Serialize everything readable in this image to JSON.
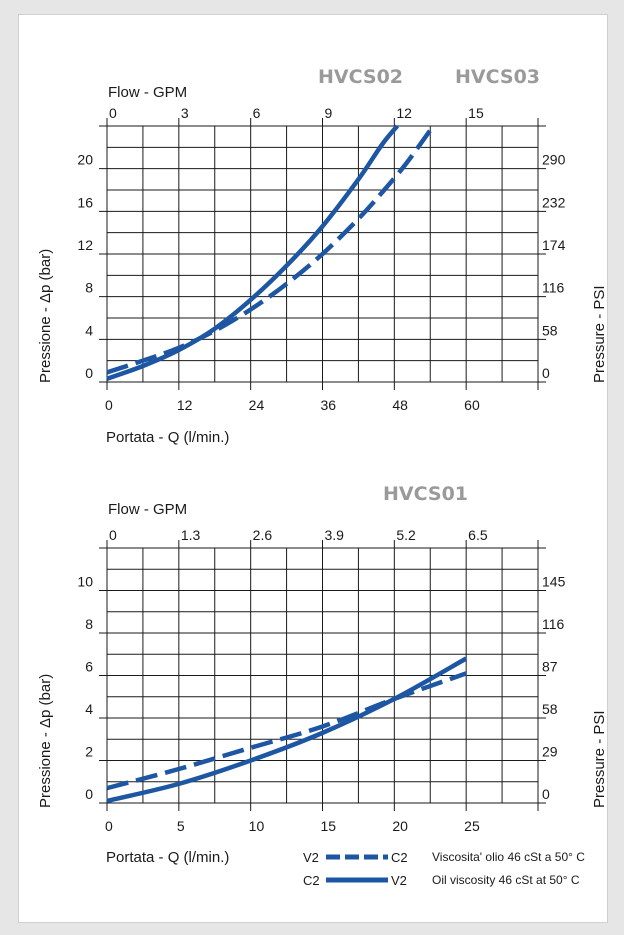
{
  "colors": {
    "curve": "#1d56a3",
    "grid": "#1a1a1a",
    "brand": "#9a9a9a"
  },
  "chart_data": [
    {
      "type": "line",
      "brands": [
        "HVCS02",
        "HVCS03"
      ],
      "top_axis_label": "Flow - GPM",
      "top_ticks": [
        "0",
        "3",
        "6",
        "9",
        "12",
        "15"
      ],
      "xlabel": "Portata - Q (l/min.)",
      "x_ticks": [
        "0",
        "12",
        "24",
        "36",
        "48",
        "60"
      ],
      "xlim": [
        0,
        72
      ],
      "ylabel": "Pressione -  Δp (bar)",
      "y_ticks": [
        "0",
        "4",
        "8",
        "12",
        "16",
        "20"
      ],
      "ylim": [
        0,
        24
      ],
      "right_axis_label": "Pressure - PSI",
      "right_ticks": [
        "0",
        "58",
        "116",
        "174",
        "232",
        "290"
      ],
      "grid": true,
      "series": [
        {
          "style": "solid",
          "x": [
            0,
            6,
            12,
            18,
            24,
            30,
            36,
            42,
            46,
            48.5
          ],
          "y": [
            0.3,
            1.5,
            3.0,
            5.0,
            7.7,
            10.9,
            14.6,
            19.0,
            22.3,
            24.0
          ]
        },
        {
          "style": "dashed",
          "x": [
            0,
            6,
            12,
            18,
            24,
            30,
            36,
            42,
            46,
            50,
            54.5
          ],
          "y": [
            0.9,
            2.0,
            3.2,
            4.8,
            6.8,
            9.2,
            12.0,
            15.3,
            17.8,
            20.5,
            24.0
          ]
        }
      ]
    },
    {
      "type": "line",
      "brands": [
        "HVCS01"
      ],
      "top_axis_label": "Flow - GPM",
      "top_ticks": [
        "0",
        "1.3",
        "2.6",
        "3.9",
        "5.2",
        "6.5"
      ],
      "xlabel": "Portata - Q (l/min.)",
      "x_ticks": [
        "0",
        "5",
        "10",
        "15",
        "20",
        "25"
      ],
      "xlim": [
        0,
        30
      ],
      "ylabel": "Pressione -  Δp (bar)",
      "y_ticks": [
        "0",
        "2",
        "4",
        "6",
        "8",
        "10"
      ],
      "ylim": [
        0,
        12
      ],
      "right_axis_label": "Pressure - PSI",
      "right_ticks": [
        "0",
        "29",
        "58",
        "87",
        "116",
        "145"
      ],
      "grid": true,
      "series": [
        {
          "style": "solid",
          "x": [
            0,
            5,
            10,
            15,
            20,
            25
          ],
          "y": [
            0.1,
            0.9,
            2.0,
            3.3,
            4.9,
            6.8
          ]
        },
        {
          "style": "dashed",
          "x": [
            0,
            5,
            10,
            15,
            20,
            25
          ],
          "y": [
            0.7,
            1.6,
            2.6,
            3.6,
            4.9,
            6.1
          ]
        }
      ],
      "legend": {
        "row1": {
          "left": "V2",
          "right": "C2",
          "style": "dashed"
        },
        "row2": {
          "left": "C2",
          "right": "V2",
          "style": "solid"
        },
        "note_it": "Viscosita' olio 46 cSt a 50° C",
        "note_en": "Oil viscosity 46 cSt at 50° C"
      }
    }
  ]
}
